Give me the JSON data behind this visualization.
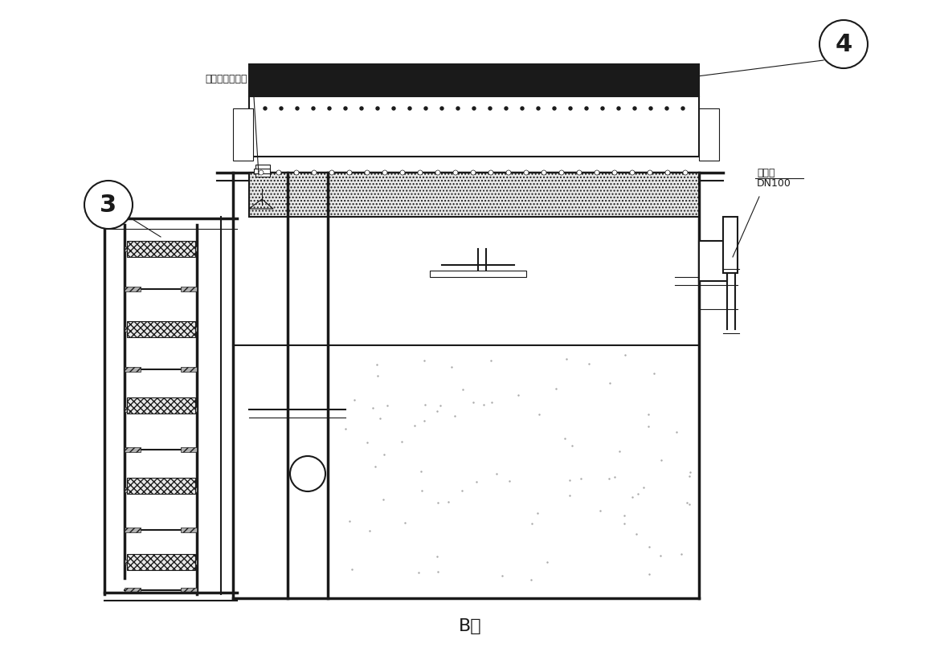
{
  "bg_color": "#ffffff",
  "line_color": "#1a1a1a",
  "dark_fill": "#1a1a1a",
  "gray_fill": "#c8c8c8",
  "light_gray": "#e8e8e8",
  "hatch_gray": "#b0b0b0",
  "title_label": "B向",
  "label_4": "4",
  "label_3": "3",
  "annotation_liquid": "液位调节器组合",
  "annotation_mud": "出泥口",
  "annotation_dn": "DN100",
  "fig_width": 11.7,
  "fig_height": 8.17
}
